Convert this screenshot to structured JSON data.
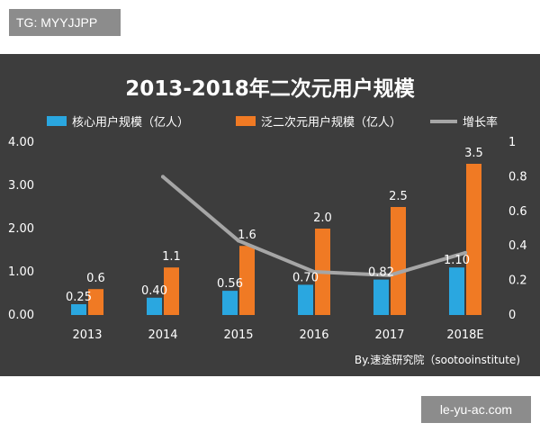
{
  "badge": {
    "text": "TG: MYYJJPP"
  },
  "watermark": {
    "text": "le-yu-ac.com"
  },
  "chart_data": {
    "type": "bar",
    "title": "2013-2018年二次元用户规模",
    "categories": [
      "2013",
      "2014",
      "2015",
      "2016",
      "2017",
      "2018E"
    ],
    "series": [
      {
        "name": "核心用户规模（亿人）",
        "kind": "bar",
        "axis": "left",
        "color": "#2aa7e0",
        "values": [
          0.25,
          0.4,
          0.56,
          0.7,
          0.82,
          1.1
        ],
        "labels": [
          "0.25",
          "0.40",
          "0.56",
          "0.70",
          "0.82",
          "1.10"
        ]
      },
      {
        "name": "泛二次元用户规模（亿人）",
        "kind": "bar",
        "axis": "left",
        "color": "#f07a24",
        "values": [
          0.6,
          1.1,
          1.6,
          2.0,
          2.5,
          3.5
        ],
        "labels": [
          "0.6",
          "1.1",
          "1.6",
          "2.0",
          "2.5",
          "3.5"
        ]
      },
      {
        "name": "增长率",
        "kind": "line",
        "axis": "right",
        "color": "#a6a6a6",
        "values": [
          null,
          0.8,
          0.43,
          0.25,
          0.23,
          0.36
        ]
      }
    ],
    "y_left": {
      "ticks": [
        "0.00",
        "1.00",
        "2.00",
        "3.00",
        "4.00"
      ],
      "range": [
        0,
        4
      ]
    },
    "y_right": {
      "ticks": [
        "0",
        "0.2",
        "0.4",
        "0.6",
        "0.8",
        "1"
      ],
      "range": [
        0,
        1
      ]
    },
    "grid": false,
    "legend": "top",
    "source": "By.速途研究院（sootooinstitute)"
  }
}
